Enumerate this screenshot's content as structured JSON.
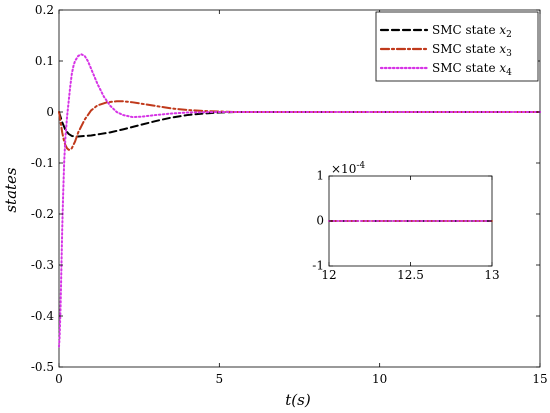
{
  "chart_data": [
    {
      "type": "line",
      "xlabel": "t(s)",
      "ylabel": "states",
      "xlim": [
        0,
        15
      ],
      "ylim": [
        -0.5,
        0.2
      ],
      "xticks": [
        "0",
        "5",
        "10",
        "15"
      ],
      "yticks": [
        "0.2",
        "0.1",
        "0",
        "-0.1",
        "-0.2",
        "-0.3",
        "-0.4",
        "-0.5"
      ],
      "grid": false,
      "legend_position": "top-right",
      "series": [
        {
          "name": "SMC state x2",
          "legend_prefix": "SMC state ",
          "legend_var": "x",
          "legend_sub": "2",
          "color": "#000000",
          "style": "dashed",
          "x": [
            0,
            0.1,
            0.2,
            0.3,
            0.4,
            0.5,
            0.6,
            0.8,
            1.0,
            1.3,
            1.6,
            2.0,
            2.5,
            3.0,
            3.5,
            4.0,
            4.5,
            5.0,
            5.5,
            6.0,
            7.0,
            8.0,
            10.0,
            12.0,
            15.0
          ],
          "y": [
            0.0,
            -0.02,
            -0.035,
            -0.043,
            -0.047,
            -0.048,
            -0.048,
            -0.047,
            -0.046,
            -0.043,
            -0.04,
            -0.034,
            -0.026,
            -0.018,
            -0.011,
            -0.006,
            -0.003,
            -0.001,
            0.0,
            0.0,
            0.0,
            0.0,
            0.0,
            0.0,
            0.0
          ]
        },
        {
          "name": "SMC state x3",
          "legend_prefix": "SMC state ",
          "legend_var": "x",
          "legend_sub": "3",
          "color": "#c0391b",
          "style": "dashdot",
          "x": [
            0,
            0.05,
            0.1,
            0.15,
            0.2,
            0.25,
            0.3,
            0.35,
            0.4,
            0.5,
            0.6,
            0.8,
            1.0,
            1.2,
            1.5,
            1.8,
            2.0,
            2.3,
            2.6,
            3.0,
            3.5,
            4.0,
            4.5,
            5.0,
            5.5,
            6.0,
            8.0,
            10.0,
            15.0
          ],
          "y": [
            0.0,
            -0.02,
            -0.04,
            -0.055,
            -0.065,
            -0.071,
            -0.074,
            -0.074,
            -0.071,
            -0.058,
            -0.04,
            -0.015,
            0.003,
            0.013,
            0.019,
            0.021,
            0.021,
            0.019,
            0.016,
            0.012,
            0.007,
            0.004,
            0.002,
            0.001,
            0.0,
            0.0,
            0.0,
            0.0,
            0.0
          ]
        },
        {
          "name": "SMC state x4",
          "legend_prefix": "SMC state ",
          "legend_var": "x",
          "legend_sub": "4",
          "color": "#d633e6",
          "style": "dotted",
          "x": [
            0,
            0.02,
            0.05,
            0.08,
            0.1,
            0.13,
            0.16,
            0.2,
            0.25,
            0.3,
            0.35,
            0.4,
            0.45,
            0.5,
            0.6,
            0.7,
            0.8,
            0.9,
            1.0,
            1.1,
            1.2,
            1.4,
            1.6,
            1.8,
            2.0,
            2.3,
            2.6,
            3.0,
            3.5,
            4.0,
            5.0,
            6.0,
            8.0,
            10.0,
            15.0
          ],
          "y": [
            -0.46,
            -0.44,
            -0.38,
            -0.29,
            -0.23,
            -0.16,
            -0.1,
            -0.05,
            -0.01,
            0.02,
            0.05,
            0.075,
            0.09,
            0.1,
            0.11,
            0.113,
            0.11,
            0.1,
            0.085,
            0.07,
            0.055,
            0.03,
            0.012,
            0.0,
            -0.006,
            -0.01,
            -0.009,
            -0.006,
            -0.003,
            -0.001,
            0.0,
            0.0,
            0.0,
            0.0,
            0.0
          ]
        }
      ]
    },
    {
      "type": "line",
      "xlim": [
        12,
        13
      ],
      "ylim": [
        -1,
        1
      ],
      "xticks": [
        "12",
        "12.5",
        "13"
      ],
      "yticks": [
        "1",
        "0",
        "-1"
      ],
      "y_multiplier": "×10",
      "y_multiplier_exp": "-4",
      "series": [
        {
          "color": "#000000",
          "style": "dashed",
          "x": [
            12,
            13
          ],
          "y": [
            0,
            0
          ]
        },
        {
          "color": "#c0391b",
          "style": "dashdot",
          "x": [
            12,
            13
          ],
          "y": [
            0,
            0
          ]
        },
        {
          "color": "#d633e6",
          "style": "dotted",
          "x": [
            12,
            13
          ],
          "y": [
            0,
            0
          ]
        }
      ]
    }
  ]
}
